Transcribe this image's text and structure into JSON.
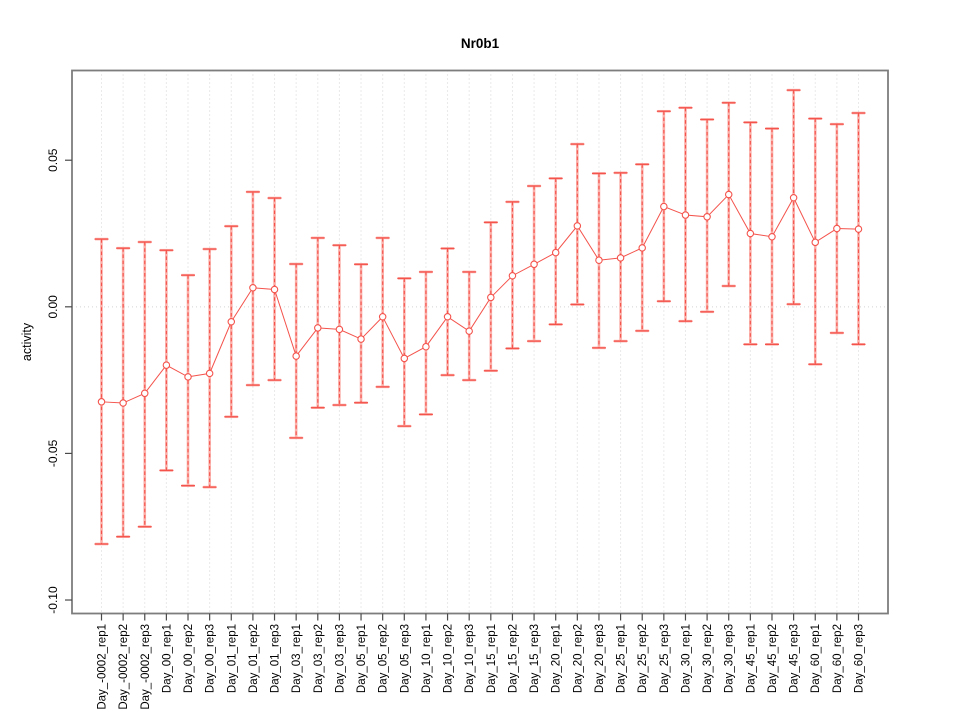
{
  "figure": {
    "background": "#ffffff"
  },
  "chart_data": {
    "type": "scatter",
    "subtype": "points-with-error-bars",
    "title": "Nr0b1",
    "xlabel": "",
    "ylabel": "activity",
    "legend": "none",
    "grid": "vertical dotted gridline per category; dotted horizontal line at 0",
    "marker": "open-circle",
    "categories": [
      "Day_-0002_rep1",
      "Day_-0002_rep2",
      "Day_-0002_rep3",
      "Day_00_rep1",
      "Day_00_rep2",
      "Day_00_rep3",
      "Day_01_rep1",
      "Day_01_rep2",
      "Day_01_rep3",
      "Day_03_rep1",
      "Day_03_rep2",
      "Day_03_rep3",
      "Day_05_rep1",
      "Day_05_rep2",
      "Day_05_rep3",
      "Day_10_rep1",
      "Day_10_rep2",
      "Day_10_rep3",
      "Day_15_rep1",
      "Day_15_rep2",
      "Day_15_rep3",
      "Day_20_rep1",
      "Day_20_rep2",
      "Day_20_rep3",
      "Day_25_rep1",
      "Day_25_rep2",
      "Day_25_rep3",
      "Day_30_rep1",
      "Day_30_rep2",
      "Day_30_rep3",
      "Day_45_rep1",
      "Day_45_rep2",
      "Day_45_rep3",
      "Day_60_rep1",
      "Day_60_rep2",
      "Day_60_rep3"
    ],
    "series": [
      {
        "name": "activity",
        "values": [
          -0.0324,
          -0.0328,
          -0.0295,
          -0.0199,
          -0.0239,
          -0.0227,
          -0.0051,
          0.0065,
          0.0059,
          -0.0168,
          -0.0072,
          -0.0077,
          -0.011,
          -0.0034,
          -0.0176,
          -0.0136,
          -0.0034,
          -0.0083,
          0.0032,
          0.0106,
          0.0145,
          0.0185,
          0.0276,
          0.0159,
          0.0167,
          0.0201,
          0.0342,
          0.0313,
          0.0307,
          0.0383,
          0.025,
          0.0239,
          0.0372,
          0.022,
          0.0267,
          0.0265
        ],
        "err_high": [
          0.0231,
          0.02,
          0.0221,
          0.0193,
          0.0108,
          0.0197,
          0.0275,
          0.0392,
          0.0371,
          0.0146,
          0.0235,
          0.021,
          0.0145,
          0.0235,
          0.0097,
          0.0119,
          0.0199,
          0.0119,
          0.0288,
          0.0358,
          0.0412,
          0.0438,
          0.0555,
          0.0455,
          0.0457,
          0.0486,
          0.0667,
          0.0679,
          0.0639,
          0.0696,
          0.0629,
          0.0608,
          0.0739,
          0.0642,
          0.0623,
          0.0661
        ],
        "err_low": [
          -0.0809,
          -0.0784,
          -0.075,
          -0.0558,
          -0.061,
          -0.0615,
          -0.0375,
          -0.0267,
          -0.025,
          -0.0447,
          -0.0344,
          -0.0335,
          -0.0327,
          -0.0273,
          -0.0407,
          -0.0367,
          -0.0233,
          -0.025,
          -0.0218,
          -0.0142,
          -0.0117,
          -0.006,
          0.0008,
          -0.014,
          -0.0117,
          -0.0082,
          0.0019,
          -0.0049,
          -0.0017,
          0.0071,
          -0.0128,
          -0.0128,
          0.0009,
          -0.0196,
          -0.0089,
          -0.0128
        ]
      }
    ],
    "ylim": [
      -0.1046,
      0.0806
    ],
    "yticks": [
      -0.1,
      -0.05,
      0.0,
      0.05
    ],
    "ytick_labels": [
      "-0.10",
      "-0.05",
      "0.00",
      "0.05"
    ],
    "colors": {
      "point": "#f4534c",
      "line": "#f4534c",
      "errorbar_dash": "#f4534c",
      "errorbar_light": "#fbb0aa",
      "grid": "#d4d4d4",
      "zero_line": "#d4d4d4",
      "box": "#7d7d7d",
      "tick": "#4a4a4a",
      "text": "#000000"
    }
  }
}
